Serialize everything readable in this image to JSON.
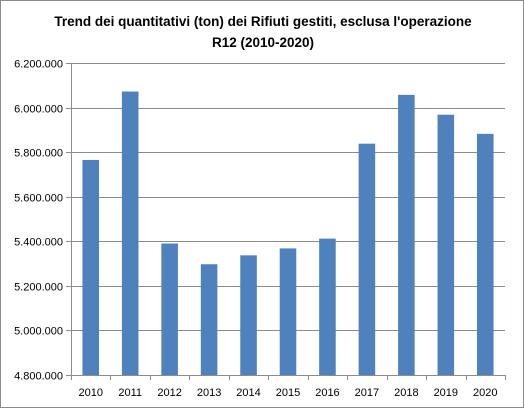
{
  "chart_data": {
    "type": "bar",
    "title_line1": "Trend dei quantitativi (ton) dei Rifiuti gestiti, esclusa l'operazione",
    "title_line2": "R12 (2010-2020)",
    "categories": [
      "2010",
      "2011",
      "2012",
      "2013",
      "2014",
      "2015",
      "2016",
      "2017",
      "2018",
      "2019",
      "2020"
    ],
    "values": [
      5765000,
      6072000,
      5390000,
      5297000,
      5337000,
      5368000,
      5412000,
      5838000,
      6057000,
      5968000,
      5882000
    ],
    "ylim": [
      4800000,
      6200000
    ],
    "yticks": [
      4800000,
      5000000,
      5200000,
      5400000,
      5600000,
      5800000,
      6000000,
      6200000
    ],
    "ytick_labels": [
      "4.800.000",
      "5.000.000",
      "5.200.000",
      "5.400.000",
      "5.600.000",
      "5.800.000",
      "6.000.000",
      "6.200.000"
    ],
    "grid": true,
    "legend": "none",
    "bar_color": "#4f81bd",
    "grid_color": "#8c8c8c"
  }
}
